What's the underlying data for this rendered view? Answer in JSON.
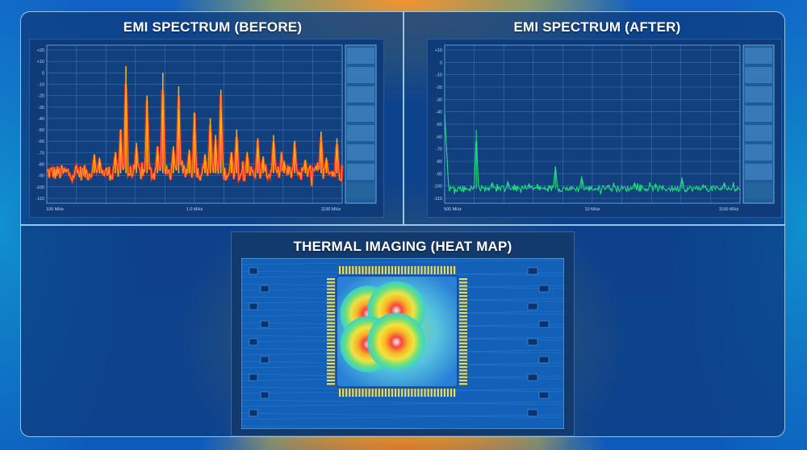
{
  "chart_data": [
    {
      "type": "line",
      "title": "EMI SPECTRUM (BEFORE)",
      "xlabel": "",
      "ylabel": "",
      "x_tick_labels": [
        "100 MHz",
        "1.0 MHz",
        "1100 MHz"
      ],
      "y_tick_labels": [
        "+20",
        "+10",
        "0",
        "-10",
        "-20",
        "-30",
        "-40",
        "-50",
        "-60",
        "-70",
        "-80",
        "-90",
        "-100",
        "-110"
      ],
      "ylim": [
        -115,
        25
      ],
      "grid": true,
      "noise_floor_db": -88,
      "peaks": [
        {
          "x": 0.18,
          "y": -72
        },
        {
          "x": 0.2,
          "y": -75
        },
        {
          "x": 0.26,
          "y": -70
        },
        {
          "x": 0.28,
          "y": -50
        },
        {
          "x": 0.3,
          "y": 6
        },
        {
          "x": 0.34,
          "y": -62
        },
        {
          "x": 0.38,
          "y": -20
        },
        {
          "x": 0.42,
          "y": -65
        },
        {
          "x": 0.44,
          "y": 0
        },
        {
          "x": 0.48,
          "y": -65
        },
        {
          "x": 0.5,
          "y": -12
        },
        {
          "x": 0.54,
          "y": -68
        },
        {
          "x": 0.56,
          "y": -35
        },
        {
          "x": 0.6,
          "y": -72
        },
        {
          "x": 0.62,
          "y": -40
        },
        {
          "x": 0.64,
          "y": -55
        },
        {
          "x": 0.66,
          "y": -15
        },
        {
          "x": 0.7,
          "y": -70
        },
        {
          "x": 0.72,
          "y": -50
        },
        {
          "x": 0.76,
          "y": -70
        },
        {
          "x": 0.8,
          "y": -58
        },
        {
          "x": 0.82,
          "y": -74
        },
        {
          "x": 0.86,
          "y": -55
        },
        {
          "x": 0.9,
          "y": -78
        },
        {
          "x": 0.94,
          "y": -60
        },
        {
          "x": 0.98,
          "y": -77
        },
        {
          "x": 1.04,
          "y": -52
        },
        {
          "x": 1.06,
          "y": -75
        },
        {
          "x": 1.1,
          "y": -58
        }
      ],
      "color_peak": "#ffb300",
      "color_fill": "#ff2f1a"
    },
    {
      "type": "line",
      "title": "EMI SPECTRUM (AFTER)",
      "xlabel": "",
      "ylabel": "",
      "x_tick_labels": [
        "500 MHz",
        "10 MHz",
        "1100 MHz"
      ],
      "y_tick_labels": [
        "+10",
        "0",
        "-10",
        "-20",
        "-30",
        "-40",
        "-50",
        "-60",
        "-70",
        "-80",
        "-90",
        "-100",
        "-110"
      ],
      "ylim": [
        -115,
        15
      ],
      "grid": true,
      "noise_floor_db": -103,
      "peaks": [
        {
          "x": 0.12,
          "y": -55
        },
        {
          "x": 0.18,
          "y": -98
        },
        {
          "x": 0.24,
          "y": -97
        },
        {
          "x": 0.32,
          "y": -99
        },
        {
          "x": 0.42,
          "y": -85
        },
        {
          "x": 0.52,
          "y": -93
        },
        {
          "x": 0.62,
          "y": -100
        },
        {
          "x": 0.72,
          "y": -98
        },
        {
          "x": 0.8,
          "y": -99
        },
        {
          "x": 0.9,
          "y": -94
        },
        {
          "x": 0.98,
          "y": -100
        },
        {
          "x": 1.06,
          "y": -98
        }
      ],
      "color_line": "#1ee07a"
    },
    {
      "type": "heatmap",
      "title": "THERMAL IMAGING (HEAT MAP)",
      "hotspots": [
        {
          "x": 0.34,
          "y": 0.38,
          "intensity": 0.85
        },
        {
          "x": 0.55,
          "y": 0.35,
          "intensity": 1.0
        },
        {
          "x": 0.34,
          "y": 0.64,
          "intensity": 0.85
        },
        {
          "x": 0.55,
          "y": 0.62,
          "intensity": 1.0
        }
      ]
    }
  ]
}
